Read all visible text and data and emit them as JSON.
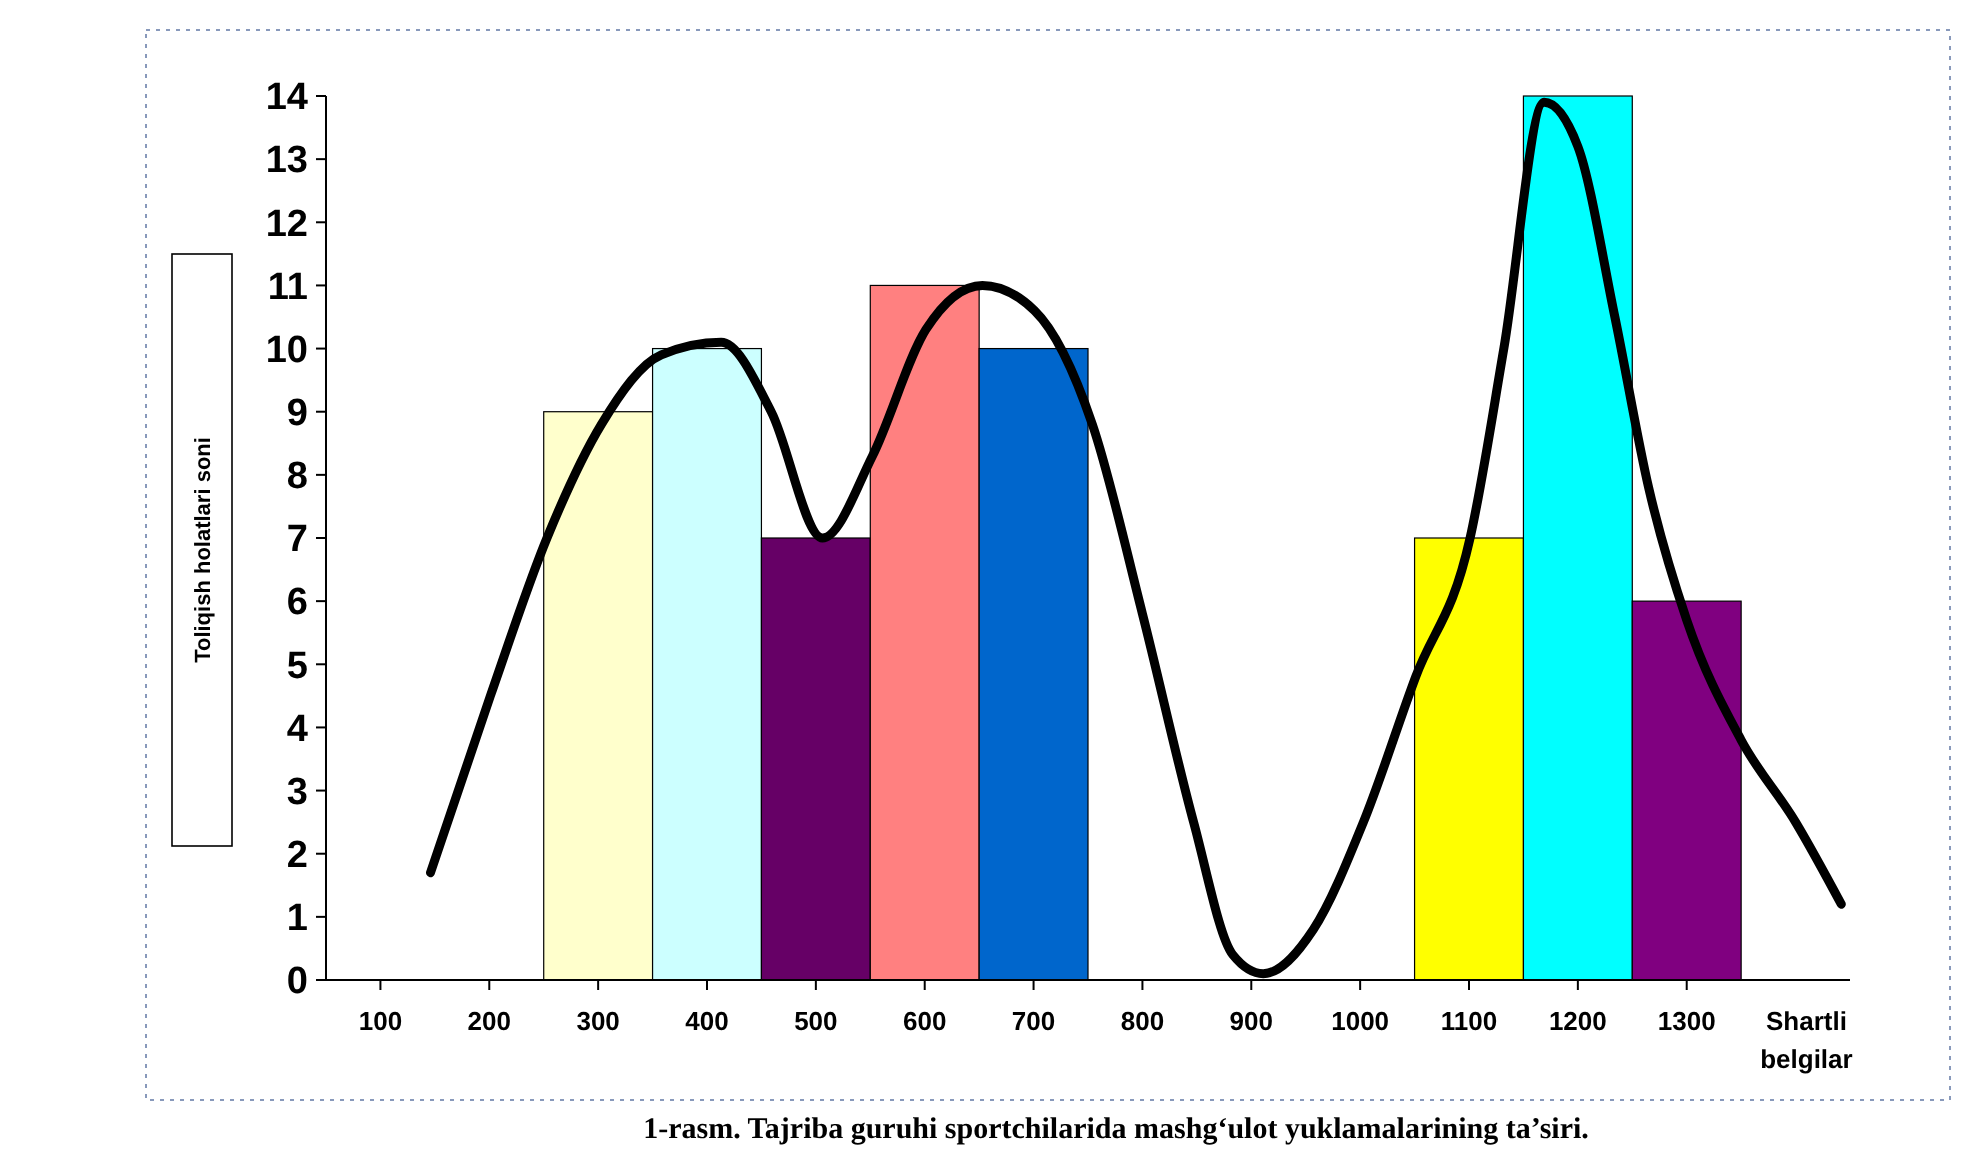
{
  "chart_data": {
    "type": "bar",
    "xlabel": "Shartli belgilar",
    "ylabel": "Toliqish holatlari soni",
    "annotations": [
      "1-rasm. Tajriba guruhi sportchilarida mashg‘ulot yuklamalarining ta’siri."
    ],
    "xlim": [
      50,
      1450
    ],
    "xticks": [
      100,
      200,
      300,
      400,
      500,
      600,
      700,
      800,
      900,
      1000,
      1100,
      1200,
      1300
    ],
    "ylim": [
      0,
      14
    ],
    "yticks": [
      0,
      1,
      2,
      3,
      4,
      5,
      6,
      7,
      8,
      9,
      10,
      11,
      12,
      13,
      14
    ],
    "series": [
      {
        "x": [
          300,
          400,
          500,
          600,
          700,
          1100,
          1200,
          1300
        ],
        "values": [
          9,
          10,
          7,
          11,
          10,
          7,
          14,
          6
        ],
        "colors": [
          "#ffffcc",
          "#ccffff",
          "#660066",
          "#ff8080",
          "#0066cc",
          "#ffff00",
          "#00ffff",
          "#800080"
        ]
      },
      {
        "type": "line",
        "color": "#000000",
        "x": [
          146,
          201,
          253,
          303,
          358,
          413,
          459,
          506,
          552,
          601,
          653,
          701,
          754,
          800,
          847,
          883,
          911,
          957,
          1003,
          1051,
          1101,
          1132,
          1169,
          1200,
          1234,
          1265,
          1300,
          1350,
          1400,
          1442
        ],
        "values": [
          1.7,
          4.5,
          7.0,
          8.8,
          9.9,
          10.1,
          9.0,
          7.0,
          8.3,
          10.3,
          11.0,
          10.6,
          8.8,
          5.8,
          2.5,
          0.4,
          0.1,
          0.8,
          2.5,
          4.8,
          7.0,
          10,
          13.9,
          13.2,
          10.5,
          7.8,
          5.7,
          3.8,
          2.5,
          1.2
        ]
      }
    ]
  }
}
